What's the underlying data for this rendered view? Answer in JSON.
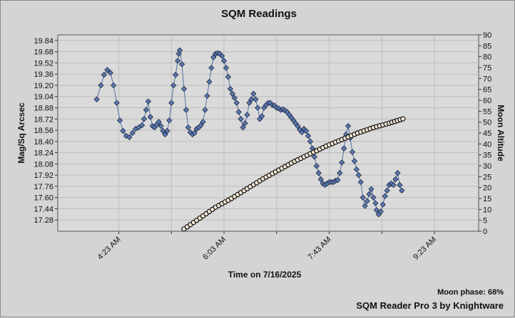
{
  "chart_data": {
    "type": "scatter",
    "title": "SQM Readings",
    "xlabel": "Time on 7/16/2025",
    "ylabel": "Mag/Sq Arcsec",
    "y2label": "Moon Altitude",
    "x_ticks": [
      "4:23 AM",
      "6:03 AM",
      "7:43 AM",
      "9:23 AM"
    ],
    "y_ticks": [
      "19.84",
      "19.68",
      "19.52",
      "19.36",
      "19.20",
      "19.04",
      "18.88",
      "18.72",
      "18.56",
      "18.40",
      "18.24",
      "18.08",
      "17.92",
      "17.76",
      "17.60",
      "17.44",
      "17.28"
    ],
    "y2_ticks": [
      "90",
      "85",
      "80",
      "75",
      "70",
      "65",
      "60",
      "55",
      "50",
      "45",
      "40",
      "35",
      "30",
      "25",
      "20",
      "15",
      "10",
      "5",
      "0"
    ],
    "ylim": [
      17.12,
      19.92
    ],
    "y2lim": [
      0,
      90
    ],
    "xlim_minutes_after_midnight": [
      205,
      605
    ],
    "grid": true,
    "series": [
      {
        "name": "SQM",
        "axis": "left",
        "color": "#5b78b0",
        "marker": "diamond",
        "points": [
          [
            242,
            19.0
          ],
          [
            246,
            19.2
          ],
          [
            249,
            19.35
          ],
          [
            252,
            19.42
          ],
          [
            255,
            19.38
          ],
          [
            258,
            19.2
          ],
          [
            261,
            18.95
          ],
          [
            264,
            18.7
          ],
          [
            267,
            18.55
          ],
          [
            270,
            18.48
          ],
          [
            273,
            18.46
          ],
          [
            276,
            18.52
          ],
          [
            279,
            18.58
          ],
          [
            282,
            18.6
          ],
          [
            285,
            18.63
          ],
          [
            287,
            18.72
          ],
          [
            289,
            18.85
          ],
          [
            291,
            18.97
          ],
          [
            293,
            18.75
          ],
          [
            295,
            18.62
          ],
          [
            297,
            18.6
          ],
          [
            299,
            18.64
          ],
          [
            301,
            18.68
          ],
          [
            303,
            18.62
          ],
          [
            305,
            18.55
          ],
          [
            307,
            18.5
          ],
          [
            309,
            18.55
          ],
          [
            311,
            18.7
          ],
          [
            313,
            18.95
          ],
          [
            315,
            19.2
          ],
          [
            317,
            19.35
          ],
          [
            319,
            19.55
          ],
          [
            320,
            19.65
          ],
          [
            321,
            19.7
          ],
          [
            323,
            19.5
          ],
          [
            325,
            19.15
          ],
          [
            327,
            18.85
          ],
          [
            329,
            18.6
          ],
          [
            331,
            18.53
          ],
          [
            333,
            18.5
          ],
          [
            335,
            18.52
          ],
          [
            337,
            18.58
          ],
          [
            339,
            18.6
          ],
          [
            341,
            18.63
          ],
          [
            343,
            18.68
          ],
          [
            345,
            18.85
          ],
          [
            347,
            19.05
          ],
          [
            349,
            19.25
          ],
          [
            351,
            19.45
          ],
          [
            353,
            19.6
          ],
          [
            355,
            19.65
          ],
          [
            357,
            19.66
          ],
          [
            359,
            19.65
          ],
          [
            361,
            19.62
          ],
          [
            363,
            19.55
          ],
          [
            365,
            19.45
          ],
          [
            367,
            19.32
          ],
          [
            369,
            19.15
          ],
          [
            371,
            19.08
          ],
          [
            373,
            19.02
          ],
          [
            375,
            18.95
          ],
          [
            377,
            18.82
          ],
          [
            379,
            18.72
          ],
          [
            381,
            18.6
          ],
          [
            383,
            18.66
          ],
          [
            385,
            18.78
          ],
          [
            387,
            18.95
          ],
          [
            389,
            19.0
          ],
          [
            391,
            19.08
          ],
          [
            393,
            19.0
          ],
          [
            395,
            18.88
          ],
          [
            397,
            18.72
          ],
          [
            399,
            18.76
          ],
          [
            401,
            18.88
          ],
          [
            403,
            18.92
          ],
          [
            405,
            18.95
          ],
          [
            407,
            18.95
          ],
          [
            409,
            18.92
          ],
          [
            411,
            18.91
          ],
          [
            413,
            18.88
          ],
          [
            415,
            18.87
          ],
          [
            417,
            18.85
          ],
          [
            419,
            18.86
          ],
          [
            421,
            18.84
          ],
          [
            423,
            18.82
          ],
          [
            425,
            18.78
          ],
          [
            427,
            18.74
          ],
          [
            429,
            18.7
          ],
          [
            431,
            18.66
          ],
          [
            433,
            18.62
          ],
          [
            435,
            18.57
          ],
          [
            437,
            18.53
          ],
          [
            439,
            18.58
          ],
          [
            441,
            18.55
          ],
          [
            443,
            18.48
          ],
          [
            445,
            18.4
          ],
          [
            447,
            18.3
          ],
          [
            449,
            18.18
          ],
          [
            451,
            18.05
          ],
          [
            453,
            17.95
          ],
          [
            455,
            17.86
          ],
          [
            457,
            17.8
          ],
          [
            459,
            17.78
          ],
          [
            461,
            17.8
          ],
          [
            463,
            17.82
          ],
          [
            465,
            17.82
          ],
          [
            467,
            17.82
          ],
          [
            469,
            17.84
          ],
          [
            471,
            17.85
          ],
          [
            473,
            17.95
          ],
          [
            475,
            18.1
          ],
          [
            477,
            18.3
          ],
          [
            479,
            18.5
          ],
          [
            481,
            18.62
          ],
          [
            483,
            18.45
          ],
          [
            485,
            18.25
          ],
          [
            487,
            18.12
          ],
          [
            489,
            18.0
          ],
          [
            491,
            17.92
          ],
          [
            493,
            17.82
          ],
          [
            495,
            17.6
          ],
          [
            497,
            17.48
          ],
          [
            499,
            17.55
          ],
          [
            501,
            17.65
          ],
          [
            503,
            17.72
          ],
          [
            505,
            17.6
          ],
          [
            507,
            17.52
          ],
          [
            508,
            17.42
          ],
          [
            510,
            17.36
          ],
          [
            512,
            17.4
          ],
          [
            514,
            17.5
          ],
          [
            516,
            17.62
          ],
          [
            518,
            17.7
          ],
          [
            520,
            17.78
          ],
          [
            522,
            17.8
          ],
          [
            524,
            17.78
          ],
          [
            526,
            17.86
          ],
          [
            528,
            17.95
          ],
          [
            530,
            17.78
          ],
          [
            532,
            17.7
          ]
        ]
      },
      {
        "name": "Moon Altitude",
        "axis": "right",
        "color": "#8a2a2a",
        "marker": "circle",
        "points": [
          [
            325,
            1
          ],
          [
            340,
            6
          ],
          [
            355,
            11
          ],
          [
            370,
            15
          ],
          [
            385,
            19.5
          ],
          [
            400,
            24
          ],
          [
            415,
            28
          ],
          [
            430,
            32
          ],
          [
            445,
            35.5
          ],
          [
            460,
            39
          ],
          [
            475,
            42
          ],
          [
            490,
            45
          ],
          [
            505,
            47.5
          ],
          [
            520,
            49.5
          ],
          [
            533,
            51.5
          ]
        ]
      }
    ]
  },
  "footer": {
    "moon_phase": "Moon phase: 68%",
    "brand": "SQM Reader Pro 3 by Knightware"
  }
}
